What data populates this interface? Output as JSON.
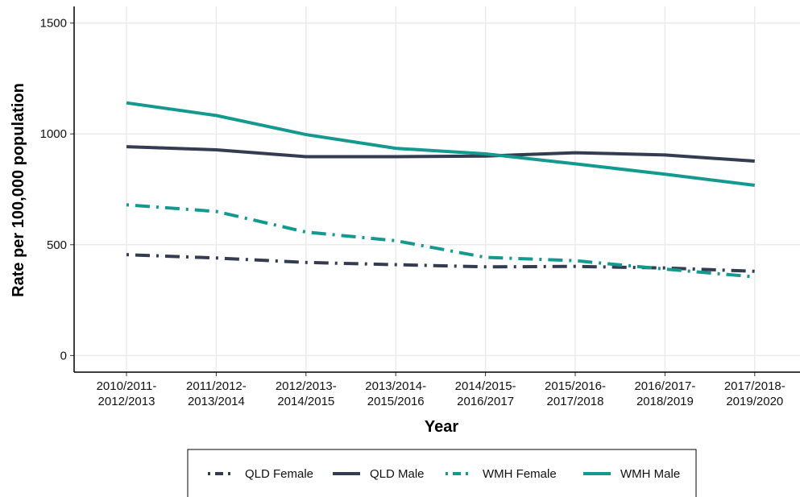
{
  "chart_data": {
    "type": "line",
    "x_label": "Year",
    "y_label": "Rate per 100,000 population",
    "categories": [
      "2010/2011-\n2012/2013",
      "2011/2012-\n2013/2014",
      "2012/2013-\n2014/2015",
      "2013/2014-\n2015/2016",
      "2014/2015-\n2016/2017",
      "2015/2016-\n2017/2018",
      "2016/2017-\n2018/2019",
      "2017/2018-\n2019/2020"
    ],
    "series": [
      {
        "name": "QLD Female",
        "color": "#343c51",
        "dash": "dotdash",
        "values": [
          455,
          440,
          420,
          410,
          400,
          402,
          395,
          380
        ]
      },
      {
        "name": "QLD Male",
        "color": "#343c51",
        "dash": "solid",
        "values": [
          942,
          928,
          897,
          897,
          900,
          915,
          905,
          877
        ]
      },
      {
        "name": "WMH Female",
        "color": "#13998f",
        "dash": "dotdash",
        "values": [
          680,
          650,
          557,
          518,
          443,
          428,
          390,
          355
        ]
      },
      {
        "name": "WMH Male",
        "color": "#13998f",
        "dash": "solid",
        "values": [
          1140,
          1083,
          997,
          935,
          910,
          865,
          818,
          768
        ]
      }
    ],
    "ylim": [
      -75,
      1575
    ],
    "yticks": [
      0,
      500,
      1000,
      1500
    ],
    "grid": true,
    "legend": "bottom"
  }
}
